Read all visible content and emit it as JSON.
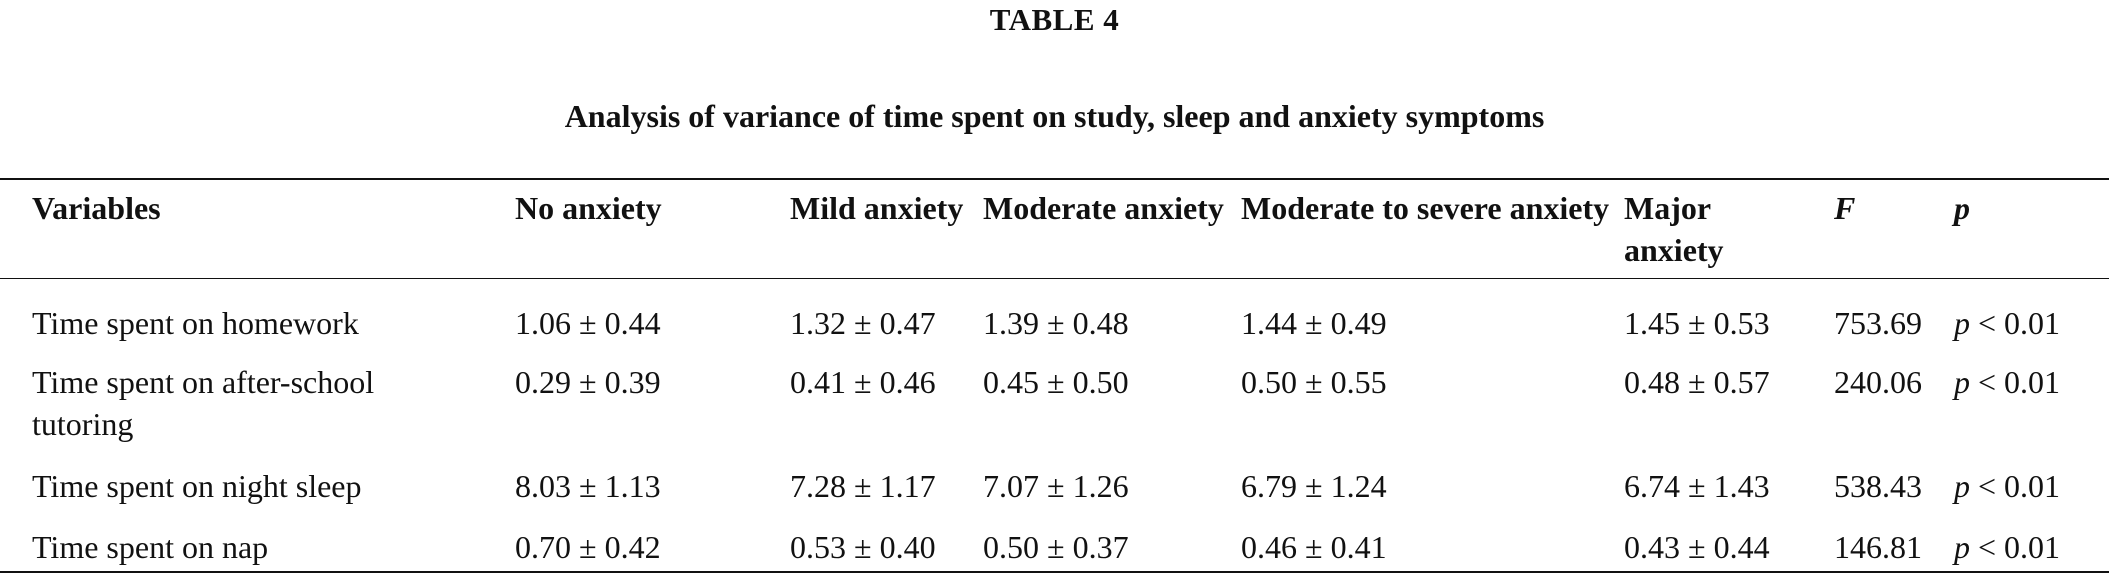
{
  "table_number": "TABLE 4",
  "caption": "Analysis of variance of time spent on study, sleep and anxiety symptoms",
  "headers": [
    "Variables",
    "No anxiety",
    "Mild anxiety",
    "Moderate anxiety",
    "Moderate to severe anxiety",
    "Major anxiety",
    "F",
    "p"
  ],
  "rows": [
    {
      "variable": "Time spent on homework",
      "no_anxiety": "1.06 ± 0.44",
      "mild": "1.32 ± 0.47",
      "moderate": "1.39 ± 0.48",
      "moderate_to_severe": "1.44 ± 0.49",
      "major": "1.45 ± 0.53",
      "f": "753.69",
      "p_symbol": "p",
      "p_rest": " < 0.01"
    },
    {
      "variable": "Time spent on after-school tutoring",
      "no_anxiety": "0.29 ± 0.39",
      "mild": "0.41 ± 0.46",
      "moderate": "0.45 ± 0.50",
      "moderate_to_severe": "0.50 ± 0.55",
      "major": "0.48 ± 0.57",
      "f": "240.06",
      "p_symbol": "p",
      "p_rest": " < 0.01"
    },
    {
      "variable": "Time spent on night sleep",
      "no_anxiety": "8.03 ± 1.13",
      "mild": "7.28 ± 1.17",
      "moderate": "7.07 ± 1.26",
      "moderate_to_severe": "6.79 ± 1.24",
      "major": "6.74 ± 1.43",
      "f": "538.43",
      "p_symbol": "p",
      "p_rest": " < 0.01"
    },
    {
      "variable": "Time spent on nap",
      "no_anxiety": "0.70 ± 0.42",
      "mild": "0.53 ± 0.40",
      "moderate": "0.50 ± 0.37",
      "moderate_to_severe": "0.46 ± 0.41",
      "major": "0.43 ± 0.44",
      "f": "146.81",
      "p_symbol": "p",
      "p_rest": " < 0.01"
    }
  ]
}
